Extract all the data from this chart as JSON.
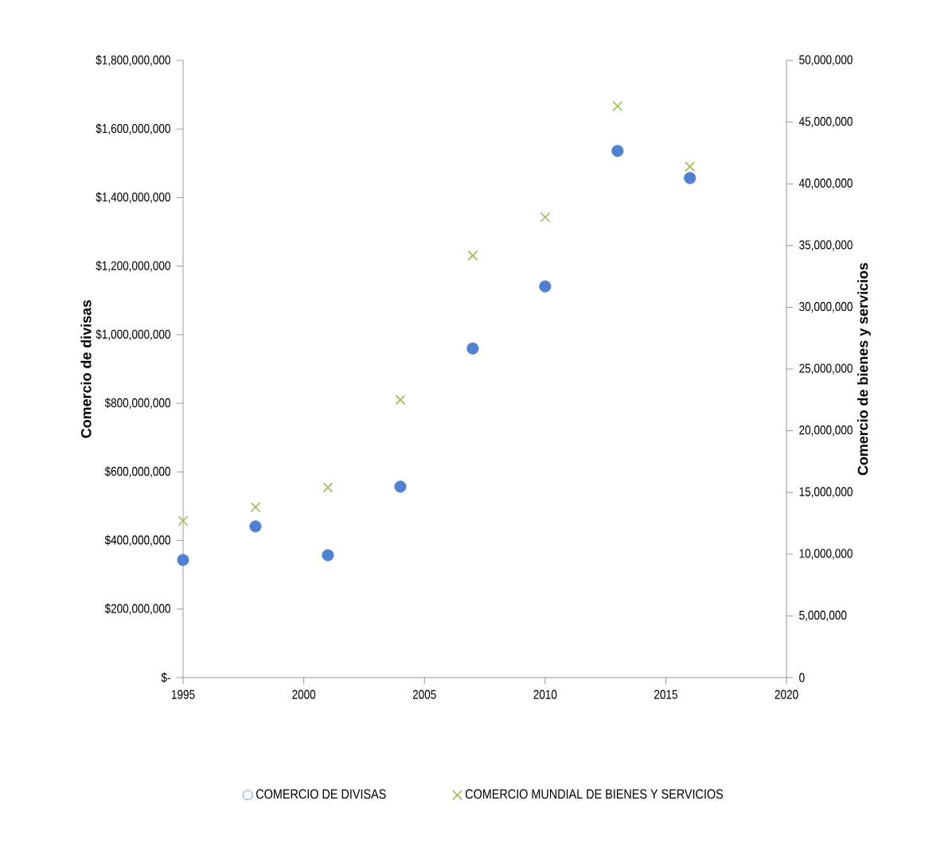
{
  "chart_data": {
    "type": "scatter",
    "xlabel": null,
    "ylabel": "Comercio de divisas",
    "y2label": "Comercio de bienes y servicios",
    "x": [
      1995,
      1998,
      2001,
      2004,
      2007,
      2010,
      2013,
      2016
    ],
    "series": [
      {
        "name": "COMERCIO DE DIVISAS",
        "color": "#4f81d0",
        "marker": "circle",
        "values": [
          343000000,
          441000000,
          357000000,
          557000000,
          960000000,
          1141000000,
          1536000000,
          1457000000
        ]
      },
      {
        "name": "COMERCIO MUNDIAL DE BIENES Y SERVICIOS",
        "color": "#9bbb59",
        "marker": "cross",
        "axis": "y2",
        "values": [
          12700000,
          13800000,
          15400000,
          22500000,
          34200000,
          37300000,
          46300000,
          41400000
        ]
      }
    ],
    "xlim": [
      1995,
      2020
    ],
    "xticks": [
      1995,
      2000,
      2005,
      2010,
      2015,
      2020
    ],
    "ylim": [
      0,
      1800000000
    ],
    "yticks": [
      {
        "value": 0,
        "label": "$-"
      },
      {
        "value": 200000000,
        "label": "$200,000,000"
      },
      {
        "value": 400000000,
        "label": "$400,000,000"
      },
      {
        "value": 600000000,
        "label": "$600,000,000"
      },
      {
        "value": 800000000,
        "label": "$800,000,000"
      },
      {
        "value": 1000000000,
        "label": "$1,000,000,000"
      },
      {
        "value": 1200000000,
        "label": "$1,200,000,000"
      },
      {
        "value": 1400000000,
        "label": "$1,400,000,000"
      },
      {
        "value": 1600000000,
        "label": "$1,600,000,000"
      },
      {
        "value": 1800000000,
        "label": "$1,800,000,000"
      }
    ],
    "y2lim": [
      0,
      50000000
    ],
    "y2ticks": [
      0,
      {
        "value": 5000000,
        "label": "5,000,000"
      },
      {
        "value": 10000000,
        "label": "10,000,000"
      },
      {
        "value": 15000000,
        "label": "15,000,000"
      },
      {
        "value": 20000000,
        "label": "20,000,000"
      },
      {
        "value": 25000000,
        "label": "25,000,000"
      },
      {
        "value": 30000000,
        "label": "30,000,000"
      },
      {
        "value": 35000000,
        "label": "35,000,000"
      },
      {
        "value": 40000000,
        "label": "40,000,000"
      },
      {
        "value": 45000000,
        "label": "45,000,000"
      },
      {
        "value": 50000000,
        "label": "50,000,000"
      }
    ],
    "grid": false,
    "legend": "bottom"
  }
}
